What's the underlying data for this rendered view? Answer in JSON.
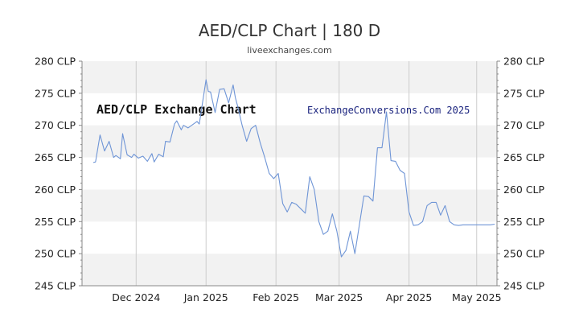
{
  "header": {
    "title": "AED/CLP Chart | 180 D",
    "subtitle": "liveexchanges.com"
  },
  "watermarks": {
    "left": "AED/CLP Exchange Chart",
    "right": "ExchangeConversions.Com 2025"
  },
  "colors": {
    "line": "#6f95d6",
    "band": "#f2f2f2",
    "gridline": "#cccccc",
    "axis": "#888888"
  },
  "chart_data": {
    "type": "line",
    "title": "AED/CLP Chart | 180 D",
    "xlabel": "",
    "ylabel": "",
    "ylim": [
      245,
      280
    ],
    "yticks": [
      245,
      250,
      255,
      260,
      265,
      270,
      275,
      280
    ],
    "ytick_labels": [
      "245 CLP",
      "250 CLP",
      "255 CLP",
      "260 CLP",
      "265 CLP",
      "270 CLP",
      "275 CLP",
      "280 CLP"
    ],
    "y_axes": "left-and-right",
    "grid": "alternating horizontal bands",
    "xlim": [
      "2024-11-07",
      "2025-05-10"
    ],
    "xtick_labels": [
      "Dec 2024",
      "Jan 2025",
      "Feb 2025",
      "Mar 2025",
      "Apr 2025",
      "May 2025"
    ],
    "xtick_dates": [
      "2024-12-01",
      "2025-01-01",
      "2025-02-01",
      "2025-03-01",
      "2025-04-01",
      "2025-05-01"
    ],
    "series": [
      {
        "dates": [
          "2024-11-12",
          "2024-11-13",
          "2024-11-15",
          "2024-11-17",
          "2024-11-19",
          "2024-11-21",
          "2024-11-22",
          "2024-11-24",
          "2024-11-25",
          "2024-11-27",
          "2024-11-29",
          "2024-11-30",
          "2024-12-02",
          "2024-12-04",
          "2024-12-06",
          "2024-12-08",
          "2024-12-09",
          "2024-12-11",
          "2024-12-13",
          "2024-12-14",
          "2024-12-16",
          "2024-12-18",
          "2024-12-19",
          "2024-12-21",
          "2024-12-22",
          "2024-12-24",
          "2024-12-26",
          "2024-12-28",
          "2024-12-29",
          "2025-01-01",
          "2025-01-02",
          "2025-01-03",
          "2025-01-05",
          "2025-01-07",
          "2025-01-09",
          "2025-01-11",
          "2025-01-13",
          "2025-01-14",
          "2025-01-15",
          "2025-01-17",
          "2025-01-19",
          "2025-01-21",
          "2025-01-23",
          "2025-01-25",
          "2025-01-27",
          "2025-01-29",
          "2025-01-31",
          "2025-02-02",
          "2025-02-04",
          "2025-02-06",
          "2025-02-08",
          "2025-02-10",
          "2025-02-12",
          "2025-02-14",
          "2025-02-16",
          "2025-02-18",
          "2025-02-20",
          "2025-02-22",
          "2025-02-24",
          "2025-02-26",
          "2025-02-28",
          "2025-03-02",
          "2025-03-04",
          "2025-03-06",
          "2025-03-08",
          "2025-03-10",
          "2025-03-12",
          "2025-03-14",
          "2025-03-16",
          "2025-03-18",
          "2025-03-20",
          "2025-03-22",
          "2025-03-24",
          "2025-03-26",
          "2025-03-28",
          "2025-03-30",
          "2025-04-01",
          "2025-04-03",
          "2025-04-05",
          "2025-04-07",
          "2025-04-09",
          "2025-04-11",
          "2025-04-13",
          "2025-04-15",
          "2025-04-17",
          "2025-04-19",
          "2025-04-21",
          "2025-04-23",
          "2025-04-25",
          "2025-04-27",
          "2025-04-29",
          "2025-05-01",
          "2025-05-03",
          "2025-05-05",
          "2025-05-07",
          "2025-05-09"
        ],
        "values": [
          264.2,
          264.3,
          268.5,
          266.0,
          267.5,
          265.0,
          265.3,
          264.8,
          268.7,
          265.4,
          265.0,
          265.5,
          264.9,
          265.2,
          264.4,
          265.6,
          264.3,
          265.5,
          265.1,
          267.5,
          267.4,
          270.2,
          270.7,
          269.3,
          270.0,
          269.6,
          270.1,
          270.6,
          270.2,
          277.1,
          275.3,
          275.2,
          272.0,
          275.6,
          275.7,
          273.5,
          276.3,
          274.3,
          273.0,
          270.0,
          267.5,
          269.5,
          270.0,
          267.3,
          265.0,
          262.5,
          261.7,
          262.5,
          257.8,
          256.5,
          258.0,
          257.7,
          257.0,
          256.3,
          262.0,
          260.0,
          255.0,
          253.0,
          253.5,
          256.2,
          253.5,
          249.5,
          250.5,
          253.5,
          250.0,
          254.5,
          259.0,
          258.9,
          258.2,
          266.5,
          266.5,
          272.1,
          264.5,
          264.4,
          263.0,
          262.5,
          256.5,
          254.4,
          254.5,
          255.0,
          257.5,
          258.0,
          258.0,
          256.0,
          257.5,
          255.0,
          254.5,
          254.4,
          254.5,
          254.5,
          254.5,
          254.5,
          254.5,
          254.5,
          254.5,
          254.6
        ]
      }
    ]
  }
}
